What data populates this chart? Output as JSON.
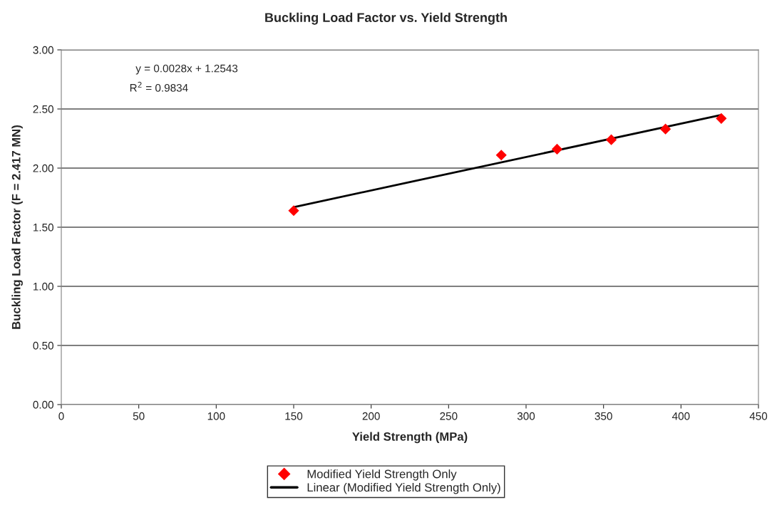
{
  "chart_data": {
    "type": "scatter",
    "title": "Buckling Load Factor vs. Yield Strength",
    "xlabel": "Yield Strength (MPa)",
    "ylabel": "Buckling Load Factor (F = 2.417 MN)",
    "series": [
      {
        "name": "Modified Yield Strength Only",
        "color": "#ff0000",
        "marker": "diamond",
        "x": [
          150,
          284,
          320,
          355,
          390,
          426
        ],
        "values": [
          1.64,
          2.11,
          2.16,
          2.24,
          2.33,
          2.42
        ]
      },
      {
        "name": "Linear (Modified Yield Strength Only)",
        "type": "line",
        "color": "#000000",
        "marker": "none",
        "line_style": "solid",
        "x": [
          150,
          426
        ],
        "values": [
          1.67,
          2.45
        ]
      }
    ],
    "annotations": [
      "y = 0.0028x + 1.2543",
      "R$^{2}$ = 0.9834"
    ],
    "xlim": [
      0,
      450
    ],
    "xticks": [
      0,
      50,
      100,
      150,
      200,
      250,
      300,
      350,
      400,
      450
    ],
    "ylim": [
      0,
      3
    ],
    "yticks": [
      {
        "value": 0,
        "label": "0.00"
      },
      {
        "value": 0.5,
        "label": "0.50"
      },
      {
        "value": 1,
        "label": "1.00"
      },
      {
        "value": 1.5,
        "label": "1.50"
      },
      {
        "value": 2,
        "label": "2.00"
      },
      {
        "value": 2.5,
        "label": "2.50"
      },
      {
        "value": 3,
        "label": "3.00"
      }
    ],
    "grid": "y",
    "legend": "bottom"
  }
}
